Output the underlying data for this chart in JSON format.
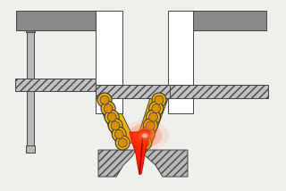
{
  "bg_color": "#f0f0eb",
  "gray": "#8a8a8a",
  "gray_dark": "#6a6a6a",
  "gray_light": "#b8b8b8",
  "gray_hatch": "#c0c0c0",
  "yellow": "#f0b800",
  "gold": "#d89000",
  "white": "#ffffff",
  "outline": "#444444",
  "red_bright": "#ff2200",
  "red_dark": "#cc1100",
  "red_glow": "#ff6633",
  "pink": "#ffaaaa",
  "lw": 0.7
}
